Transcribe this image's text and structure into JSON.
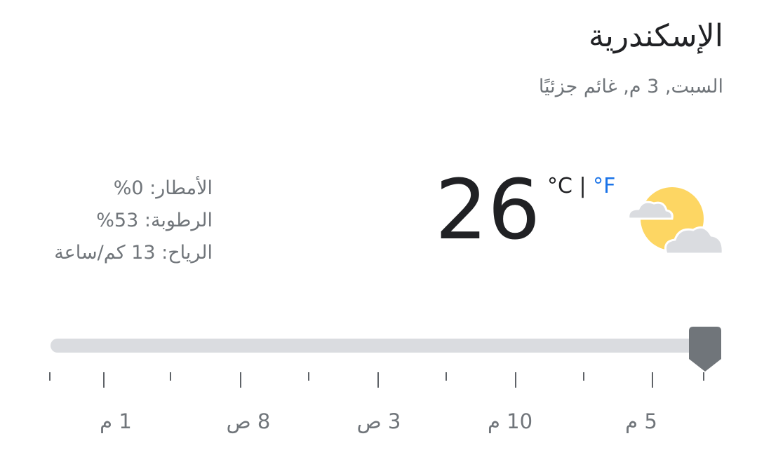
{
  "location": {
    "city": "الإسكندرية",
    "subtitle": "السبت, 3 م, غائم جزئيًا"
  },
  "current": {
    "temperature": "26",
    "unit_c": "°C",
    "separator": "|",
    "unit_f": "°F",
    "condition_icon": "partly-cloudy-icon"
  },
  "details": {
    "precipitation": "الأمطار: 0%",
    "humidity": "الرطوبة: 53%",
    "wind": "الرياح: 13 كم/ساعة"
  },
  "timeline": {
    "position": 1.0,
    "labels": [
      "1 م",
      "8 ص",
      "3 ص",
      "10 م",
      "5 م"
    ]
  },
  "colors": {
    "accent": "#1a73e8",
    "sun": "#fde293",
    "track": "#dadce0",
    "thumb": "#70757a"
  }
}
